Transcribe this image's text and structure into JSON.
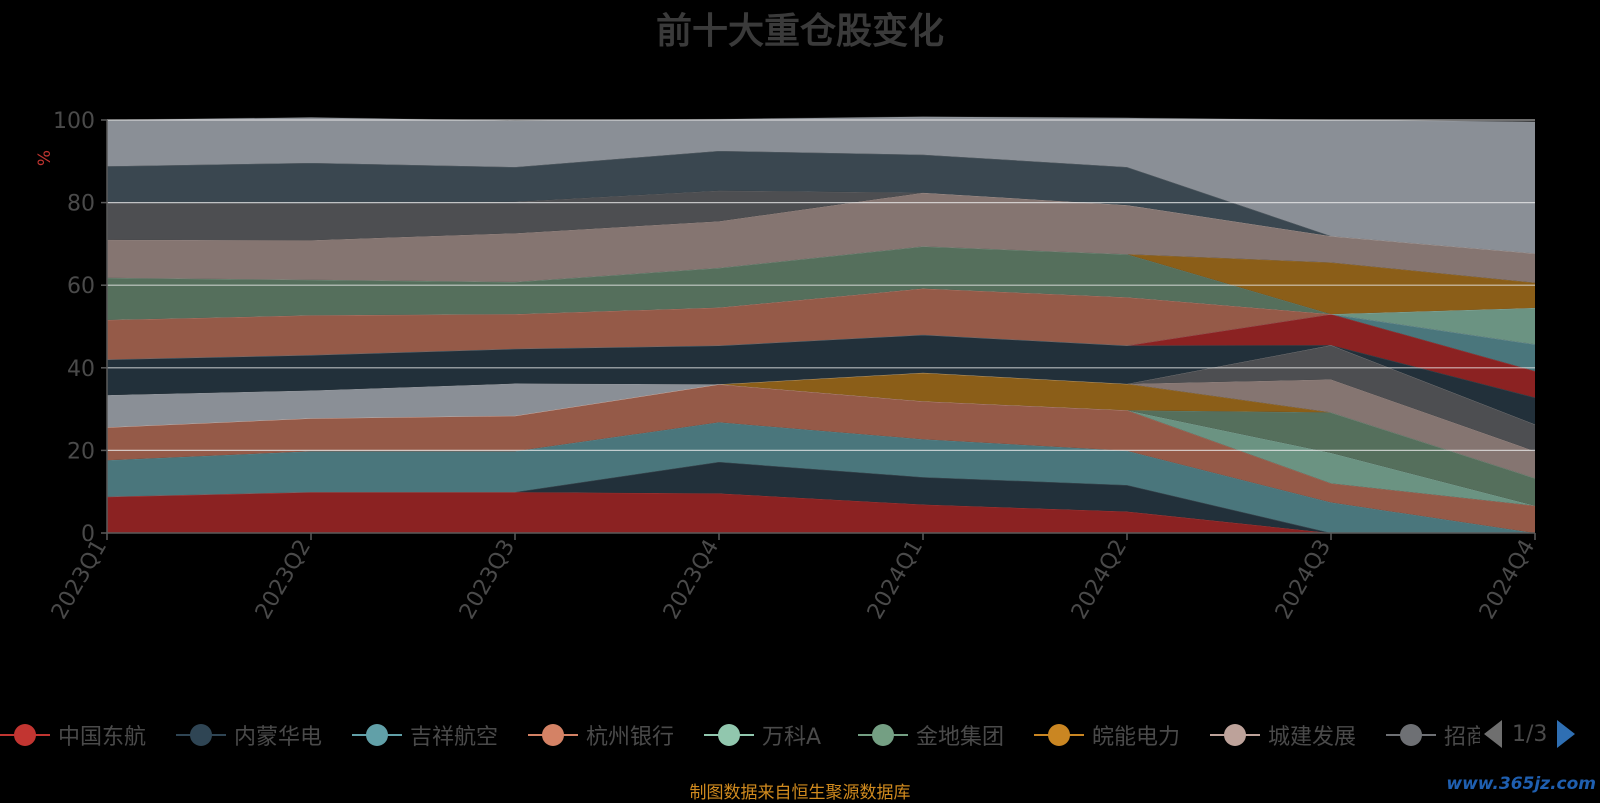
{
  "title": "前十大重仓股变化",
  "footer_note": "制图数据来自恒生聚源数据库",
  "watermark": "www.365jz.com",
  "legend": {
    "page_indicator": "1/3",
    "items": [
      {
        "label": "中国东航",
        "color": "#c23531"
      },
      {
        "label": "内蒙华电",
        "color": "#2f4554"
      },
      {
        "label": "吉祥航空",
        "color": "#61a0a8"
      },
      {
        "label": "杭州银行",
        "color": "#d48265"
      },
      {
        "label": "万科A",
        "color": "#91c7ae"
      },
      {
        "label": "金地集团",
        "color": "#749f83"
      },
      {
        "label": "皖能电力",
        "color": "#ca8622"
      },
      {
        "label": "城建发展",
        "color": "#bda29a"
      },
      {
        "label": "招商",
        "color": "#6e7074"
      }
    ]
  },
  "chart_data": {
    "type": "area",
    "stacked": true,
    "x": [
      "2023Q1",
      "2023Q2",
      "2023Q3",
      "2023Q4",
      "2024Q1",
      "2024Q2",
      "2024Q3",
      "2024Q4"
    ],
    "ylabel": "%",
    "ylim": [
      0,
      100
    ],
    "yticks": [
      0,
      20,
      40,
      60,
      80,
      100
    ],
    "grid": true,
    "legend_position": "bottom",
    "layers": [
      {
        "color": "#8b2222",
        "values": [
          8.8,
          9.9,
          9.9,
          9.6,
          6.9,
          5.2,
          0.0,
          0.0
        ]
      },
      {
        "color": "#22303a",
        "values": [
          0.0,
          0.0,
          0.0,
          7.6,
          6.6,
          6.4,
          0.0,
          0.0
        ]
      },
      {
        "color": "#4a767c",
        "values": [
          8.8,
          9.9,
          9.9,
          9.6,
          9.2,
          8.3,
          7.4,
          0.0
        ]
      },
      {
        "color": "#955a48",
        "values": [
          8.0,
          8.0,
          8.6,
          9.2,
          9.2,
          9.8,
          4.6,
          6.6
        ]
      },
      {
        "color": "#6b9382",
        "values": [
          0.0,
          0.0,
          0.0,
          0.0,
          0.0,
          0.0,
          7.4,
          0.0
        ]
      },
      {
        "color": "#556f5c",
        "values": [
          0.0,
          0.0,
          0.0,
          0.0,
          0.0,
          0.0,
          9.8,
          6.7
        ]
      },
      {
        "color": "#8b5e18",
        "values": [
          0.0,
          0.0,
          0.0,
          0.0,
          6.9,
          6.4,
          0.0,
          0.0
        ]
      },
      {
        "color": "#857571",
        "values": [
          0.0,
          0.0,
          0.0,
          0.0,
          0.0,
          0.0,
          8.0,
          6.5
        ]
      },
      {
        "color": "#4d4e51",
        "values": [
          0.0,
          0.0,
          0.0,
          0.0,
          0.0,
          0.0,
          8.3,
          6.5
        ]
      },
      {
        "color": "#8a8f96",
        "values": [
          7.8,
          6.7,
          7.8,
          0.0,
          0.0,
          0.0,
          0.0,
          0.0
        ]
      },
      {
        "color": "#22303a",
        "values": [
          8.6,
          8.6,
          8.4,
          9.4,
          9.2,
          9.3,
          0.0,
          6.5
        ]
      },
      {
        "color": "#8b2222",
        "values": [
          0.0,
          0.0,
          0.0,
          0.0,
          0.0,
          0.0,
          7.5,
          6.4
        ]
      },
      {
        "color": "#4a767c",
        "values": [
          0.0,
          0.0,
          0.0,
          0.0,
          0.0,
          0.0,
          0.0,
          6.5
        ]
      },
      {
        "color": "#955a48",
        "values": [
          9.6,
          9.6,
          8.4,
          9.2,
          11.2,
          11.7,
          0.0,
          0.0
        ]
      },
      {
        "color": "#6b9382",
        "values": [
          0.0,
          0.0,
          0.0,
          0.0,
          0.0,
          0.0,
          0.0,
          8.8
        ]
      },
      {
        "color": "#556f5c",
        "values": [
          10.2,
          8.6,
          7.8,
          9.6,
          10.2,
          10.4,
          0.0,
          0.0
        ]
      },
      {
        "color": "#8b5e18",
        "values": [
          0.0,
          0.0,
          0.0,
          0.0,
          0.0,
          0.0,
          12.5,
          6.1
        ]
      },
      {
        "color": "#857571",
        "values": [
          9.2,
          9.6,
          11.8,
          11.3,
          13.0,
          11.9,
          6.4,
          7.1
        ]
      },
      {
        "color": "#4d4e51",
        "values": [
          9.0,
          9.0,
          7.6,
          7.4,
          0.0,
          0.0,
          0.0,
          0.0
        ]
      },
      {
        "color": "#3a4750",
        "values": [
          8.8,
          9.7,
          8.4,
          9.6,
          9.2,
          9.2,
          0.0,
          0.0
        ]
      },
      {
        "color": "#8a8f96",
        "values": [
          11.2,
          11.0,
          11.2,
          7.7,
          9.2,
          11.9,
          28.1,
          31.9
        ]
      }
    ]
  }
}
